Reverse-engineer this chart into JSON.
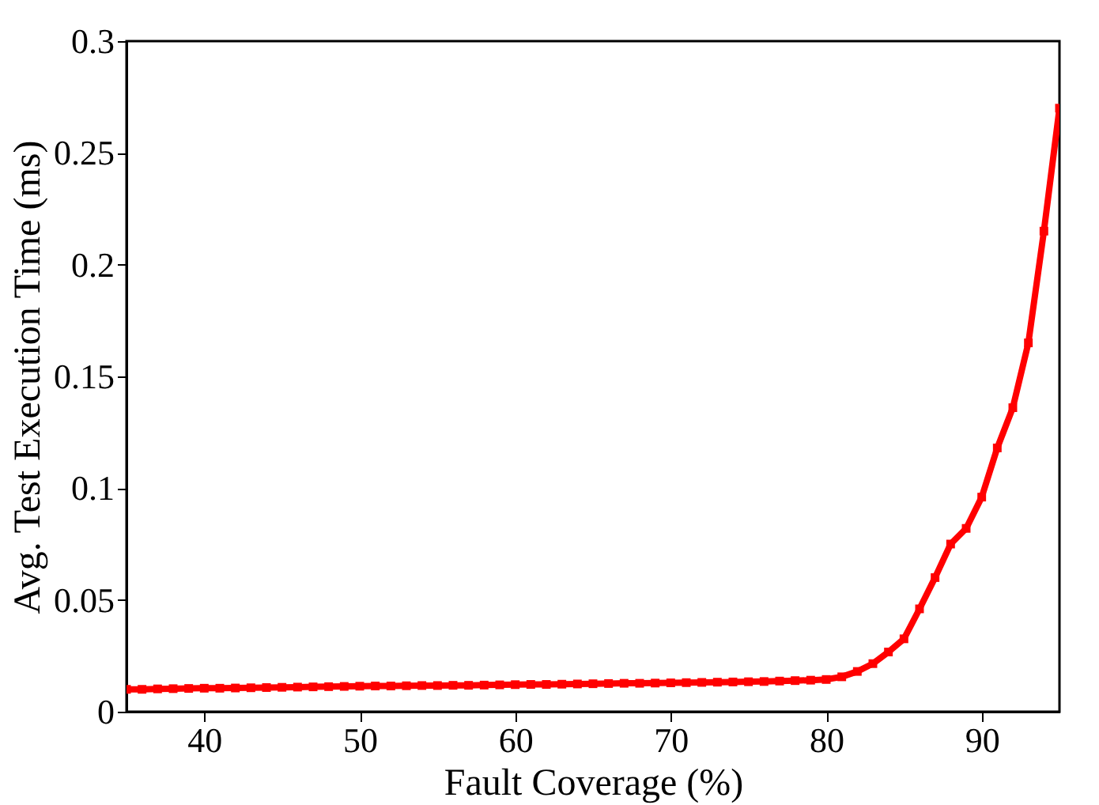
{
  "chart_data": {
    "type": "line",
    "xlabel": "Fault Coverage (%)",
    "ylabel": "Avg. Test Execution Time (ms)",
    "x": [
      35,
      36,
      37,
      38,
      39,
      40,
      41,
      42,
      43,
      44,
      45,
      46,
      47,
      48,
      49,
      50,
      51,
      52,
      53,
      54,
      55,
      56,
      57,
      58,
      59,
      60,
      61,
      62,
      63,
      64,
      65,
      66,
      67,
      68,
      69,
      70,
      71,
      72,
      73,
      74,
      75,
      76,
      77,
      78,
      79,
      80,
      81,
      82,
      83,
      84,
      85,
      86,
      87,
      88,
      89,
      90,
      91,
      92,
      93,
      94,
      95
    ],
    "series": [
      {
        "color": "#ff0000",
        "values": [
          0.01,
          0.01,
          0.0102,
          0.0103,
          0.0104,
          0.0105,
          0.0105,
          0.0106,
          0.0107,
          0.0108,
          0.0109,
          0.011,
          0.0111,
          0.0112,
          0.0113,
          0.0114,
          0.0115,
          0.0115,
          0.0116,
          0.0117,
          0.0117,
          0.0118,
          0.0118,
          0.0119,
          0.012,
          0.0121,
          0.0122,
          0.0122,
          0.0123,
          0.0124,
          0.0125,
          0.0126,
          0.0127,
          0.0127,
          0.0128,
          0.0129,
          0.013,
          0.0131,
          0.0132,
          0.0133,
          0.0134,
          0.0135,
          0.0137,
          0.0139,
          0.0141,
          0.0144,
          0.0156,
          0.018,
          0.0215,
          0.0267,
          0.0326,
          0.046,
          0.06,
          0.075,
          0.082,
          0.096,
          0.118,
          0.136,
          0.165,
          0.215,
          0.27
        ]
      }
    ],
    "xlim": [
      35,
      95
    ],
    "ylim": [
      0,
      0.3
    ],
    "xticks": [
      40,
      50,
      60,
      70,
      80,
      90
    ],
    "yticks": [
      0,
      0.05,
      0.1,
      0.15,
      0.2,
      0.25,
      0.3
    ],
    "marker": "square",
    "line_style": "solid",
    "grid": false
  }
}
